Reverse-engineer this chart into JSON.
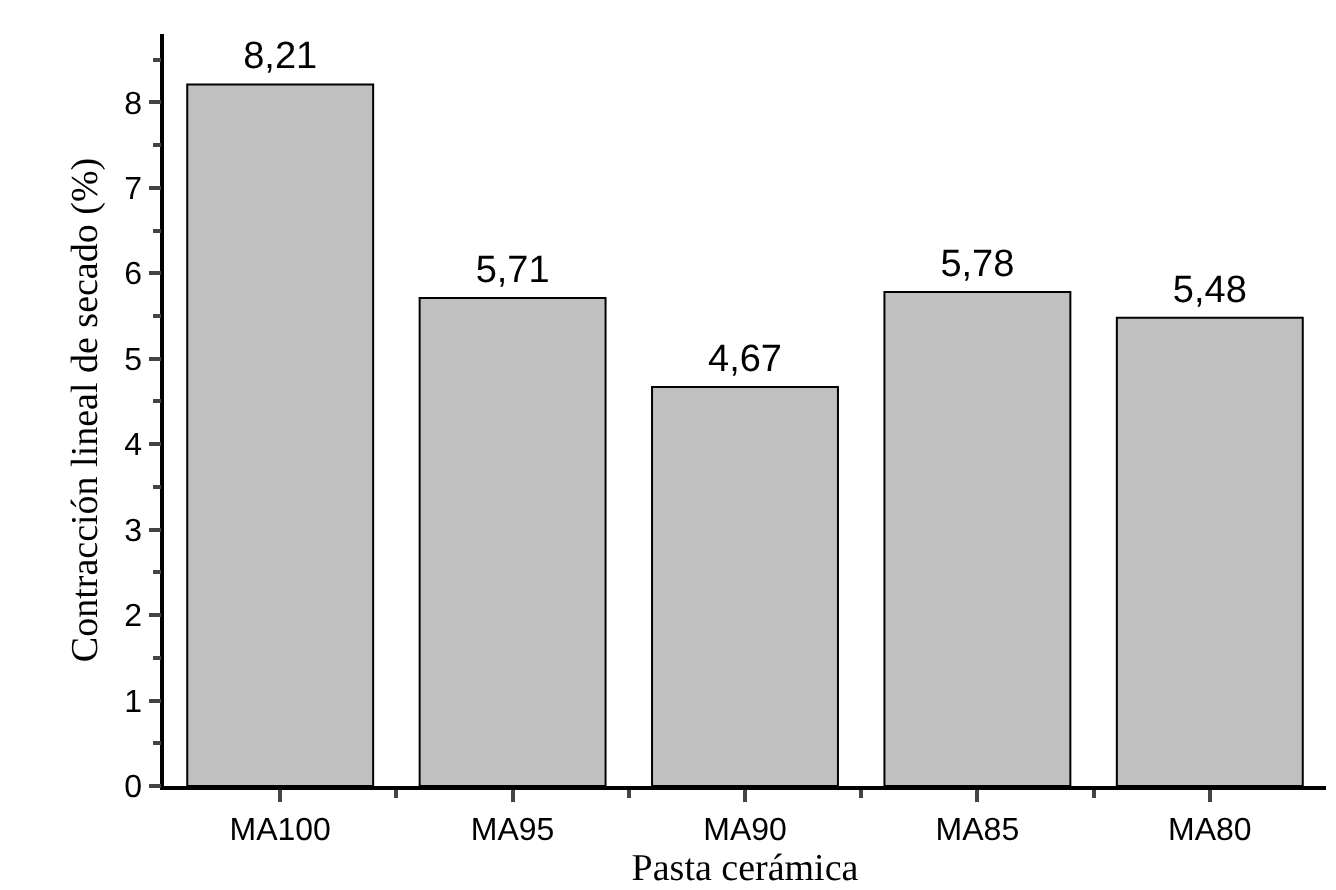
{
  "chart_data": {
    "type": "bar",
    "xlabel": "Pasta cerámica",
    "ylabel": "Contracción lineal de secado (%)",
    "categories": [
      "MA100",
      "MA95",
      "MA90",
      "MA85",
      "MA80"
    ],
    "values": [
      8.21,
      5.71,
      4.67,
      5.78,
      5.48
    ],
    "value_labels": [
      "8,21",
      "5,71",
      "4,67",
      "5,78",
      "5,48"
    ],
    "color": "#c0c0c0",
    "ylim": [
      0,
      8.8
    ],
    "yticks": [
      0,
      1,
      2,
      3,
      4,
      5,
      6,
      7,
      8
    ],
    "grid": false,
    "legend": false
  }
}
